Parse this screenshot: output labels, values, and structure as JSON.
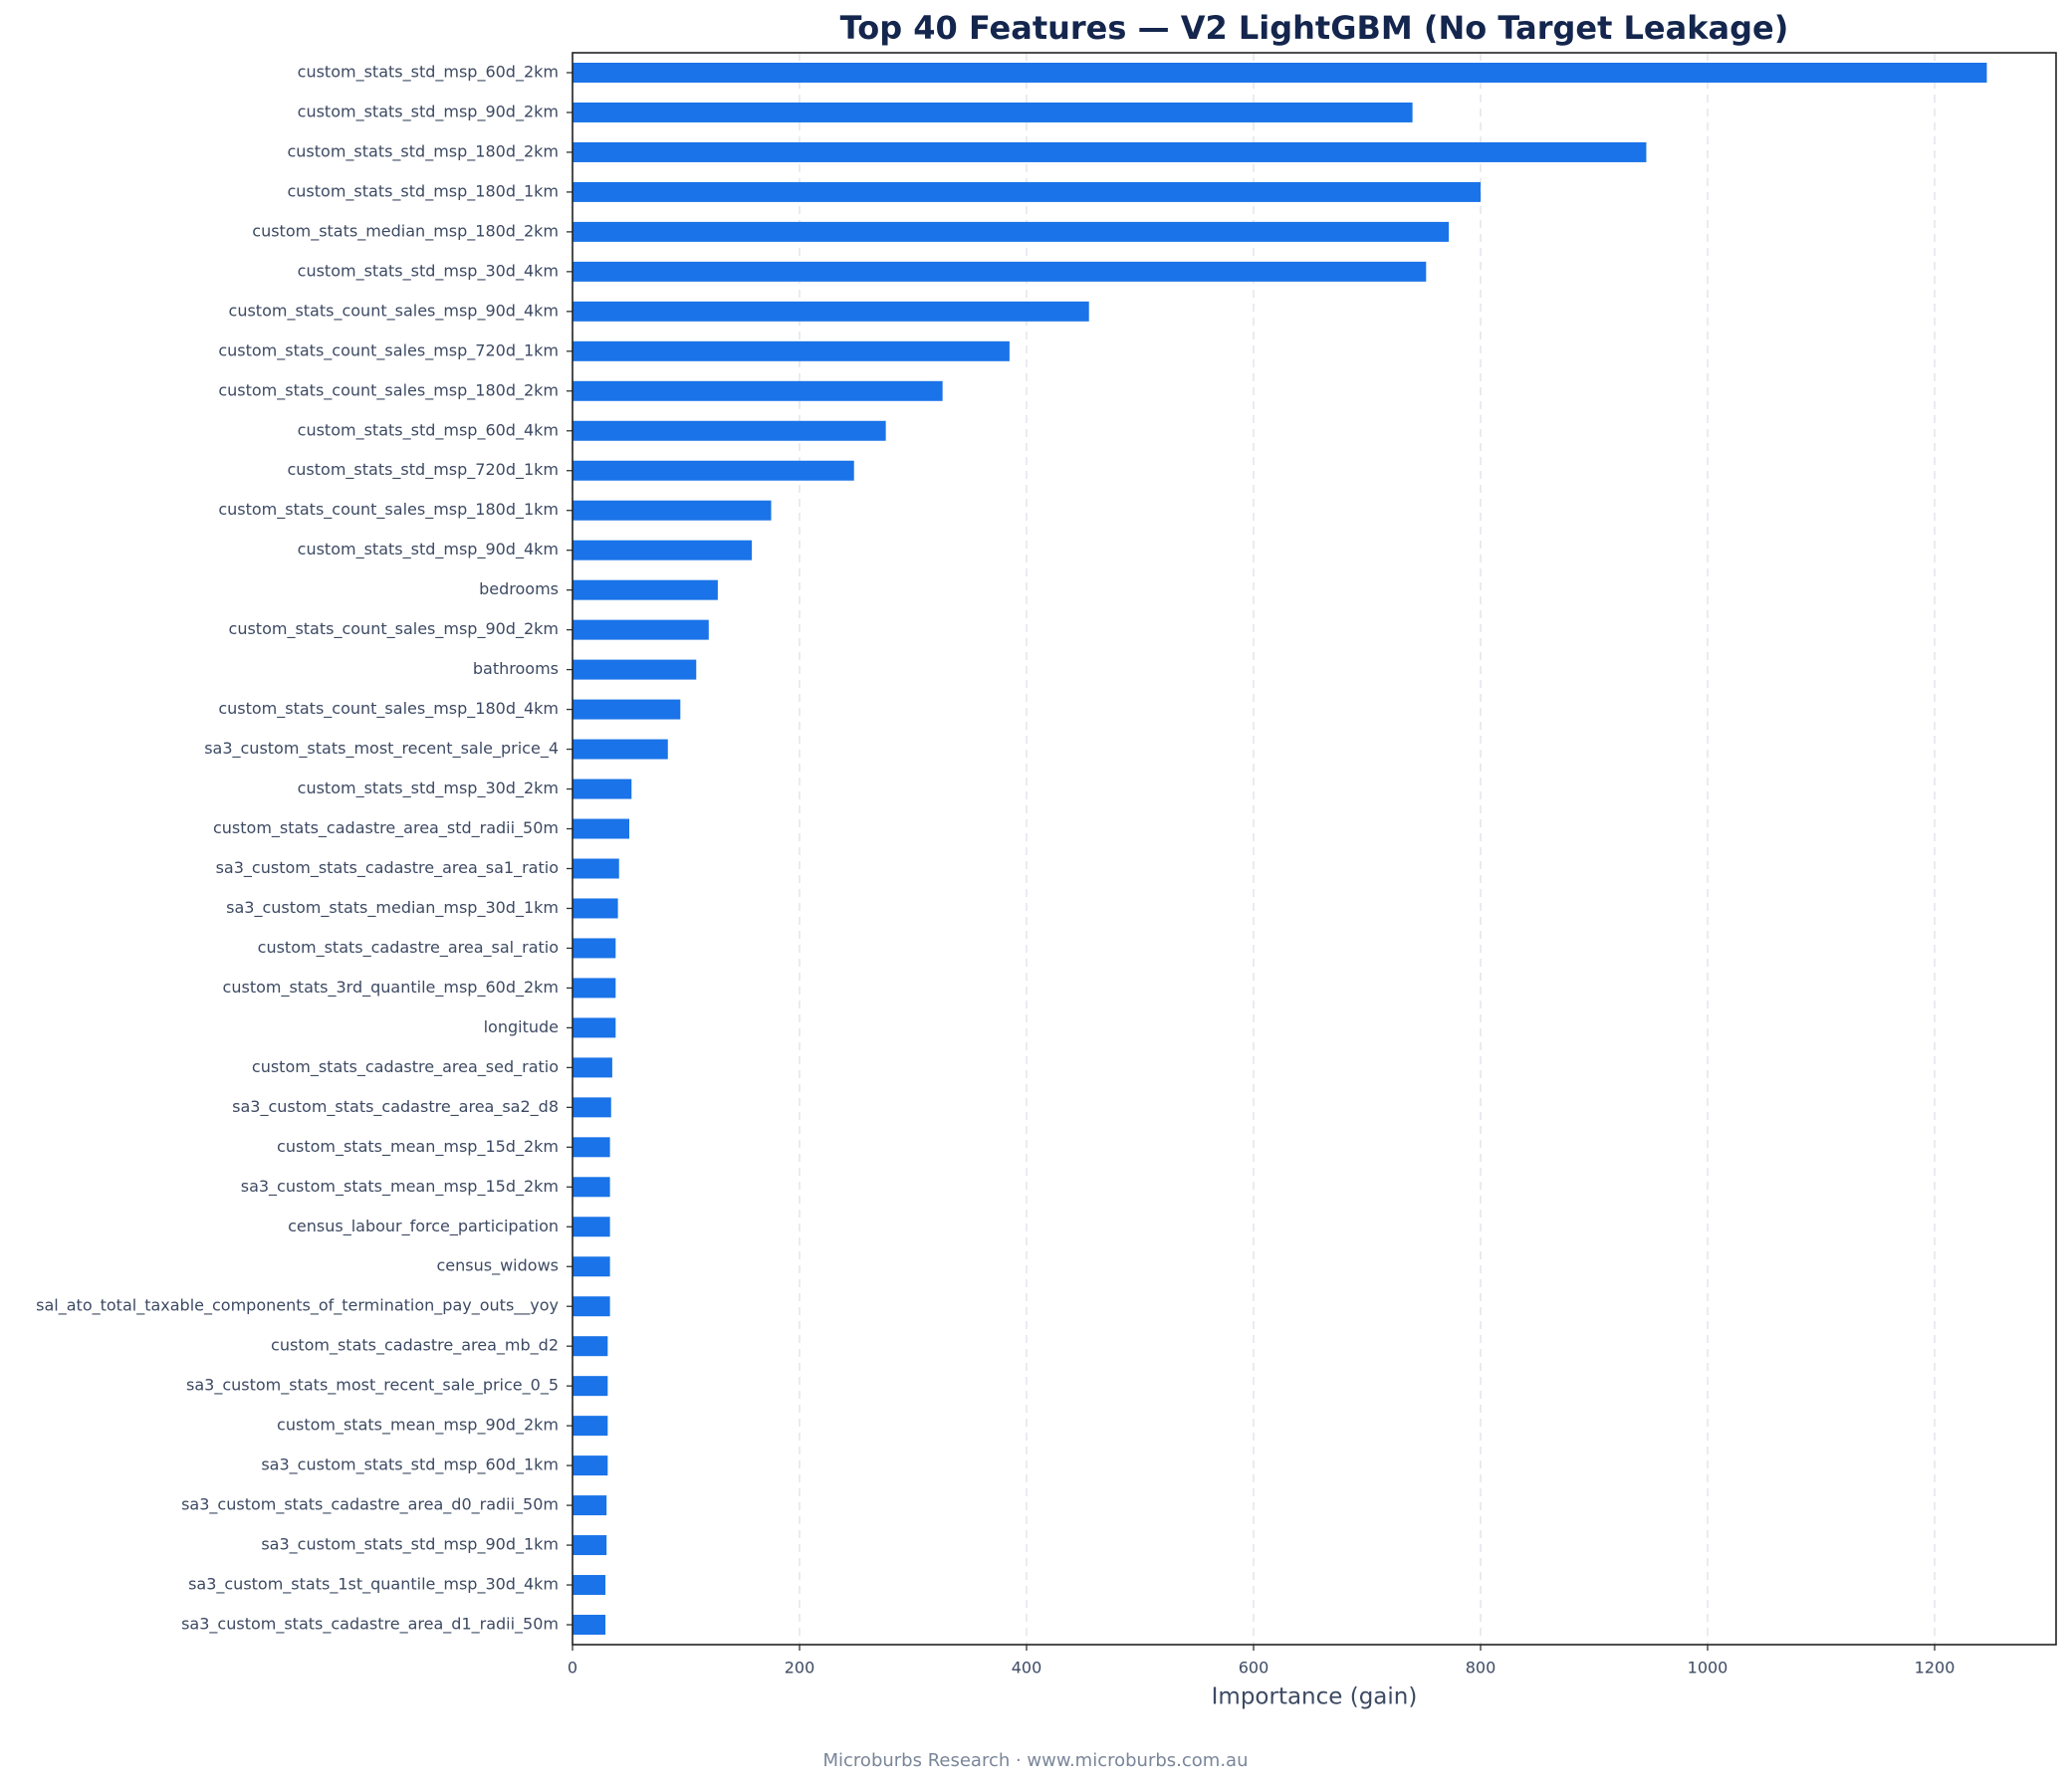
{
  "chart_data": {
    "type": "barh",
    "title": "Top 40 Features — V2 LightGBM (No Target Leakage)",
    "xlabel": "Importance (gain)",
    "footer": "Microburbs Research · www.microburbs.com.au",
    "categories": [
      "custom_stats_std_msp_60d_2km",
      "custom_stats_std_msp_90d_2km",
      "custom_stats_std_msp_180d_2km",
      "custom_stats_std_msp_180d_1km",
      "custom_stats_median_msp_180d_2km",
      "custom_stats_std_msp_30d_4km",
      "custom_stats_count_sales_msp_90d_4km",
      "custom_stats_count_sales_msp_720d_1km",
      "custom_stats_count_sales_msp_180d_2km",
      "custom_stats_std_msp_60d_4km",
      "custom_stats_std_msp_720d_1km",
      "custom_stats_count_sales_msp_180d_1km",
      "custom_stats_std_msp_90d_4km",
      "bedrooms",
      "custom_stats_count_sales_msp_90d_2km",
      "bathrooms",
      "custom_stats_count_sales_msp_180d_4km",
      "sa3_custom_stats_most_recent_sale_price_4",
      "custom_stats_std_msp_30d_2km",
      "custom_stats_cadastre_area_std_radii_50m",
      "sa3_custom_stats_cadastre_area_sa1_ratio",
      "sa3_custom_stats_median_msp_30d_1km",
      "custom_stats_cadastre_area_sal_ratio",
      "custom_stats_3rd_quantile_msp_60d_2km",
      "longitude",
      "custom_stats_cadastre_area_sed_ratio",
      "sa3_custom_stats_cadastre_area_sa2_d8",
      "custom_stats_mean_msp_15d_2km",
      "sa3_custom_stats_mean_msp_15d_2km",
      "census_labour_force_participation",
      "census_widows",
      "sal_ato_total_taxable_components_of_termination_pay_outs__yoy",
      "custom_stats_cadastre_area_mb_d2",
      "sa3_custom_stats_most_recent_sale_price_0_5",
      "custom_stats_mean_msp_90d_2km",
      "sa3_custom_stats_std_msp_60d_1km",
      "sa3_custom_stats_cadastre_area_d0_radii_50m",
      "sa3_custom_stats_std_msp_90d_1km",
      "sa3_custom_stats_1st_quantile_msp_30d_4km",
      "sa3_custom_stats_cadastre_area_d1_radii_50m"
    ],
    "values": [
      1246,
      740,
      946,
      800,
      772,
      752,
      455,
      385,
      326,
      276,
      248,
      175,
      158,
      128,
      120,
      109,
      95,
      84,
      52,
      50,
      41,
      40,
      38,
      38,
      38,
      35,
      34,
      33,
      33,
      33,
      33,
      33,
      31,
      31,
      31,
      31,
      30,
      30,
      29,
      29
    ],
    "color": "#1a73e8",
    "xlim": [
      0,
      1307
    ],
    "xticks": [
      0,
      200,
      400,
      600,
      800,
      1000,
      1200
    ],
    "grid": true
  }
}
